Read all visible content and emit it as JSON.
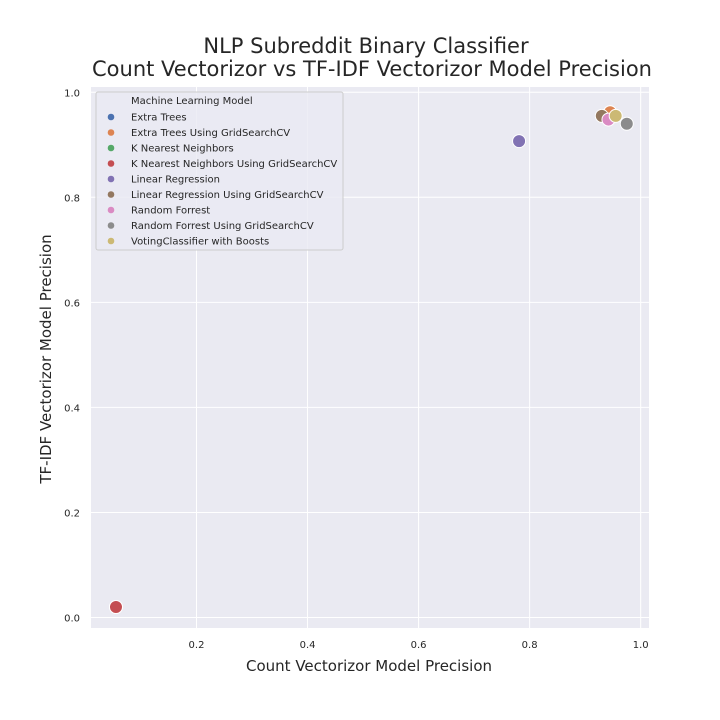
{
  "chart_data": {
    "type": "scatter",
    "title_line1": "NLP Subreddit Binary Classifier",
    "title_line2": "Count Vectorizor vs TF-IDF Vectorizor Model Precision",
    "xlabel": "Count Vectorizor Model Precision",
    "ylabel": "TF-IDF Vectorizor Model Precision",
    "xlim": [
      0.01,
      1.015
    ],
    "ylim": [
      -0.02,
      1.01
    ],
    "xticks": [
      0.2,
      0.4,
      0.6,
      0.8,
      1.0
    ],
    "yticks": [
      0.0,
      0.2,
      0.4,
      0.6,
      0.8,
      1.0
    ],
    "xtick_labels": [
      "0.2",
      "0.4",
      "0.6",
      "0.8",
      "1.0"
    ],
    "ytick_labels": [
      "0.0",
      "0.2",
      "0.4",
      "0.6",
      "0.8",
      "1.0"
    ],
    "grid": true,
    "legend": {
      "title": "Machine Learning Model",
      "placement": "upper-left"
    },
    "series": [
      {
        "name": "Extra Trees",
        "color": "#4c72b0",
        "x": 0.945,
        "y": 0.962
      },
      {
        "name": "Extra Trees Using GridSearchCV",
        "color": "#dd8452",
        "x": 0.945,
        "y": 0.962
      },
      {
        "name": "K Nearest Neighbors",
        "color": "#55a868",
        "x": 0.055,
        "y": 0.02
      },
      {
        "name": "K Nearest Neighbors Using GridSearchCV",
        "color": "#c44e52",
        "x": 0.055,
        "y": 0.02
      },
      {
        "name": "Linear Regression",
        "color": "#8172b3",
        "x": 0.781,
        "y": 0.907
      },
      {
        "name": "Linear Regression Using GridSearchCV",
        "color": "#937860",
        "x": 0.93,
        "y": 0.955
      },
      {
        "name": "Random Forrest",
        "color": "#da8bc3",
        "x": 0.942,
        "y": 0.948
      },
      {
        "name": "Random Forrest Using GridSearchCV",
        "color": "#8c8c8c",
        "x": 0.975,
        "y": 0.94
      },
      {
        "name": "VotingClassifier with Boosts",
        "color": "#ccb974",
        "x": 0.955,
        "y": 0.955
      }
    ]
  }
}
